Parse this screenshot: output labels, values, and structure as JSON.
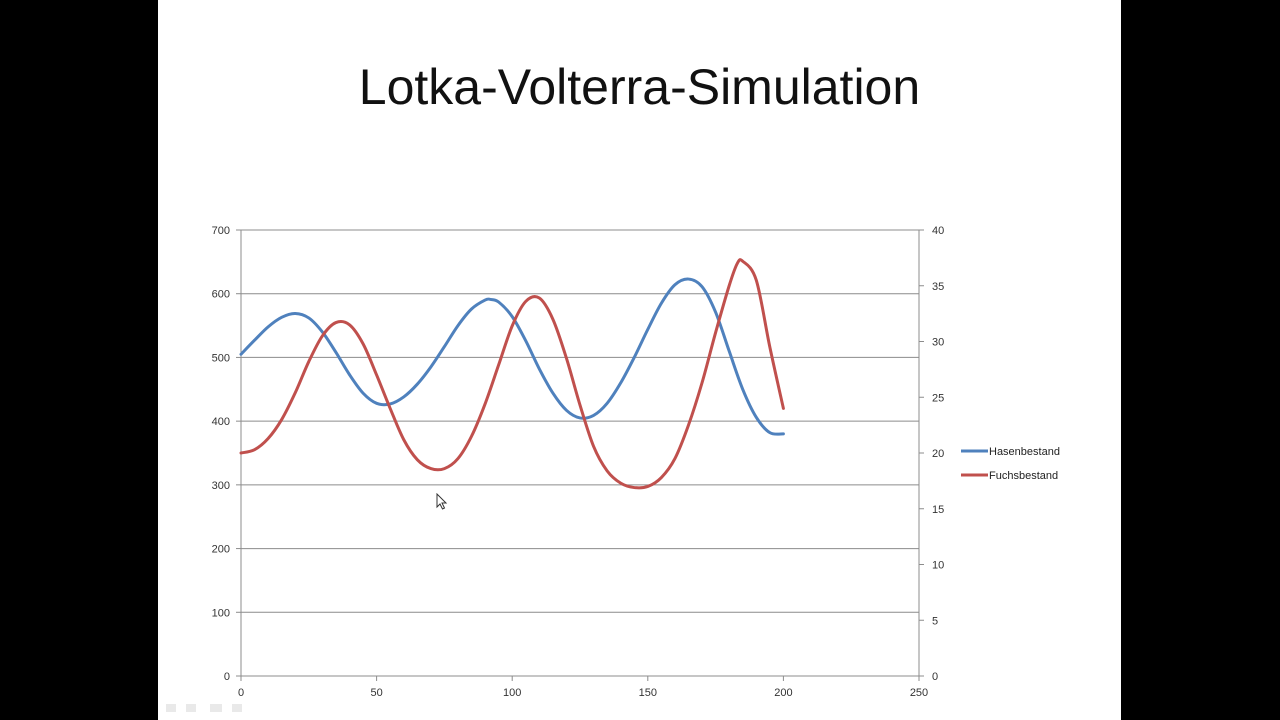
{
  "slide": {
    "title": "Lotka-Volterra-Simulation"
  },
  "colors": {
    "background": "#000000",
    "slide": "#ffffff",
    "hasen": "#4f81bd",
    "fuchs": "#c0504d",
    "grid": "#8c8c8c"
  },
  "chart_data": {
    "type": "line",
    "title": "",
    "xlabel": "",
    "ylabel": "",
    "y2label": "",
    "xlim": [
      0,
      250
    ],
    "ylim": [
      0,
      700
    ],
    "y2lim": [
      0,
      40
    ],
    "x_ticks": [
      "0",
      "50",
      "100",
      "150",
      "200",
      "250"
    ],
    "y_ticks": [
      "0",
      "100",
      "200",
      "300",
      "400",
      "500",
      "600",
      "700"
    ],
    "y2_ticks": [
      "0",
      "5",
      "10",
      "15",
      "20",
      "25",
      "30",
      "35",
      "40"
    ],
    "grid": "horizontal",
    "legend_position": "right",
    "series": [
      {
        "name": "Hasenbestand",
        "axis": "left",
        "color": "#4f81bd",
        "x": [
          0,
          5,
          10,
          15,
          20,
          25,
          30,
          35,
          40,
          45,
          50,
          55,
          60,
          65,
          70,
          75,
          80,
          85,
          90,
          92,
          95,
          100,
          105,
          110,
          115,
          120,
          125,
          130,
          135,
          140,
          145,
          150,
          155,
          160,
          165,
          170,
          175,
          180,
          185,
          190,
          195,
          200
        ],
        "values": [
          505,
          527,
          548,
          563,
          569,
          562,
          540,
          508,
          473,
          444,
          428,
          427,
          438,
          458,
          485,
          517,
          550,
          576,
          590,
          591,
          587,
          564,
          526,
          482,
          444,
          417,
          405,
          409,
          428,
          460,
          500,
          544,
          585,
          614,
          623,
          611,
          571,
          510,
          450,
          406,
          382,
          380
        ]
      },
      {
        "name": "Fuchsbestand",
        "axis": "right",
        "color": "#c0504d",
        "x": [
          0,
          5,
          10,
          15,
          20,
          25,
          30,
          35,
          40,
          45,
          50,
          55,
          60,
          65,
          70,
          75,
          80,
          85,
          90,
          95,
          100,
          105,
          110,
          115,
          120,
          125,
          130,
          135,
          140,
          145,
          150,
          155,
          160,
          165,
          170,
          175,
          180,
          183,
          185,
          190,
          195,
          200
        ],
        "values": [
          20.0,
          20.3,
          21.3,
          23.0,
          25.4,
          28.2,
          30.5,
          31.7,
          31.5,
          29.8,
          27.0,
          24.0,
          21.2,
          19.4,
          18.6,
          18.6,
          19.5,
          21.5,
          24.4,
          27.9,
          31.4,
          33.6,
          33.9,
          32.0,
          28.5,
          24.3,
          20.6,
          18.4,
          17.3,
          16.9,
          17.0,
          17.8,
          19.5,
          22.5,
          26.3,
          30.8,
          35.0,
          37.0,
          37.2,
          35.5,
          29.5,
          24.0
        ]
      }
    ]
  }
}
